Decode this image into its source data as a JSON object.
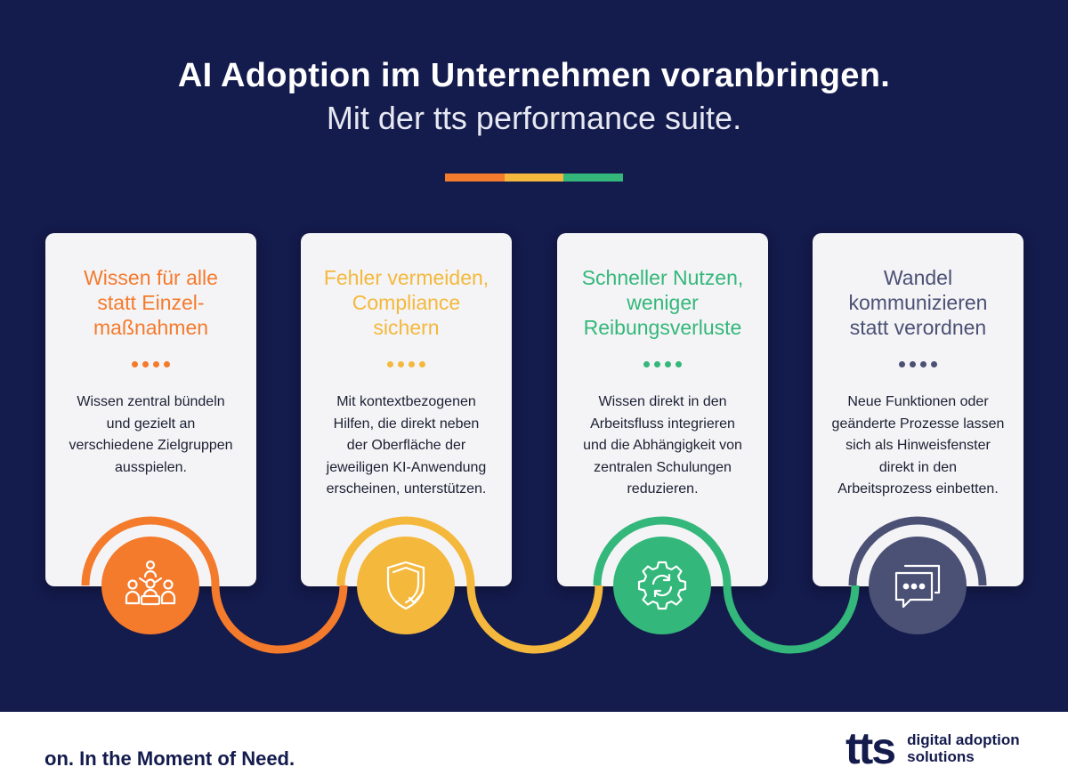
{
  "header": {
    "title": "AI Adoption im Unternehmen voranbringen.",
    "subtitle": "Mit der tts performance suite."
  },
  "colors": {
    "background": "#141b4d",
    "orange": "#f47a2c",
    "yellow": "#f4b83c",
    "green": "#33b77a",
    "slate": "#4b5075",
    "card": "#f4f4f6"
  },
  "cards": [
    {
      "title": "Wissen für alle\nstatt Einzel-\nmaßnahmen",
      "body": "Wissen zentral bündeln\nund gezielt an\nverschiedene Zielgruppen\nausspielen.",
      "icon": "team-icon"
    },
    {
      "title": "Fehler vermeiden,\nCompliance\nsichern",
      "body": "Mit kontextbezogenen\nHilfen, die direkt neben\nder Oberfläche der\njeweiligen KI-Anwendung\nerscheinen, unterstützen.",
      "icon": "shield-check-icon"
    },
    {
      "title": "Schneller Nutzen,\nweniger\nReibungsverluste",
      "body": "Wissen direkt in den\nArbeitsfluss integrieren\nund die Abhängigkeit von\nzentralen Schulungen\nreduzieren.",
      "icon": "gear-cycle-icon"
    },
    {
      "title": "Wandel\nkommunizieren\nstatt verordnen",
      "body": "Neue Funktionen oder\ngeänderte Prozesse lassen\nsich als Hinweisfenster\ndirekt in den\nArbeitsprozess einbetten.",
      "icon": "chat-window-icon"
    }
  ],
  "footer": {
    "tagline": "on. In the Moment of Need.",
    "logo_mark": "tts",
    "logo_text": "digital adoption\nsolutions"
  }
}
